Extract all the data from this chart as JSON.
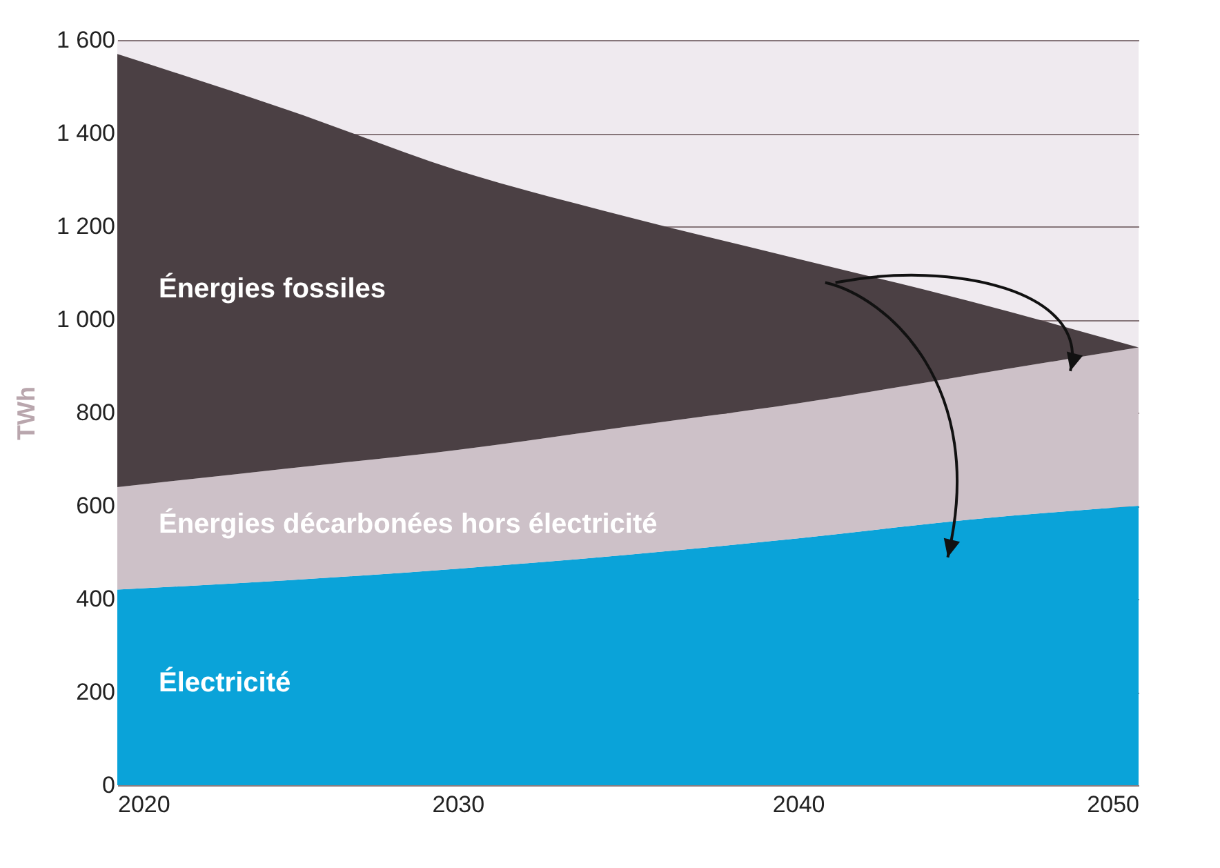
{
  "chart_data": {
    "type": "area",
    "stacked": true,
    "ylabel": "TWh",
    "x": [
      2020,
      2025,
      2030,
      2035,
      2040,
      2045,
      2050
    ],
    "series": [
      {
        "name": "Électricité",
        "color": "#0aa3d9",
        "values": [
          420,
          440,
          465,
          495,
          530,
          570,
          600
        ]
      },
      {
        "name": "Énergies décarbonées hors électricité",
        "color": "#cdc1c8",
        "values": [
          220,
          240,
          255,
          275,
          290,
          310,
          340
        ]
      },
      {
        "name": "Énergies fossiles",
        "color": "#4b4044",
        "values": [
          930,
          770,
          600,
          450,
          310,
          160,
          0
        ]
      }
    ],
    "xlim": [
      2020,
      2050
    ],
    "xticks": [
      2020,
      2030,
      2040,
      2050
    ],
    "ylim": [
      0,
      1600
    ],
    "yticks": [
      0,
      200,
      400,
      600,
      800,
      {
        "value": 1000,
        "label": "1 000"
      },
      {
        "value": 1200,
        "label": "1 200"
      },
      {
        "value": 1400,
        "label": "1 400"
      },
      {
        "value": 1600,
        "label": "1 600"
      }
    ],
    "grid": "y",
    "legend": false
  }
}
